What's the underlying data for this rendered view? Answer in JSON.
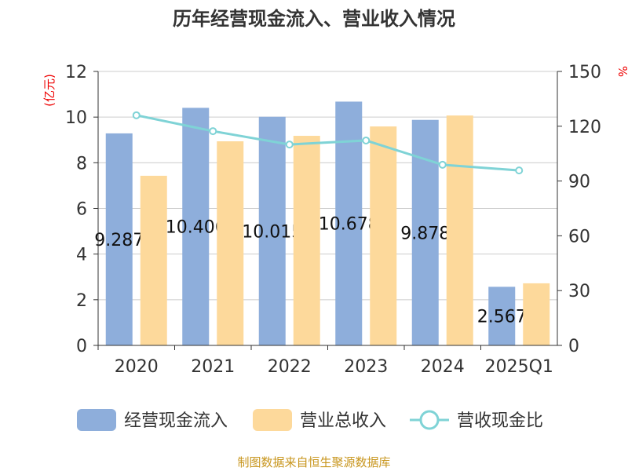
{
  "chart_data": {
    "type": "bar",
    "title": "历年经营现金流入、营业收入情况",
    "categories": [
      "2020",
      "2021",
      "2022",
      "2023",
      "2024",
      "2025Q1"
    ],
    "ylabel": "(亿元)",
    "y2label": "%",
    "ylim": [
      0,
      12
    ],
    "yticks": [
      0,
      2,
      4,
      6,
      8,
      10,
      12
    ],
    "y2lim": [
      0,
      150
    ],
    "y2ticks": [
      0,
      30,
      60,
      90,
      120,
      150
    ],
    "grid": true,
    "legend_position": "bottom",
    "series": [
      {
        "name": "经营现金流入",
        "type": "bar",
        "axis": "left",
        "color": "#8eaedb",
        "values": [
          9.287,
          10.406,
          10.015,
          10.678,
          9.878,
          2.567
        ],
        "labels": [
          "9.287",
          "10.406",
          "10.015",
          "10.678",
          "9.878",
          "2.567"
        ]
      },
      {
        "name": "营业总收入",
        "type": "bar",
        "axis": "left",
        "color": "#fdd99b",
        "values": [
          7.43,
          8.94,
          9.18,
          9.59,
          10.07,
          2.72
        ]
      },
      {
        "name": "营收现金比",
        "type": "line",
        "axis": "right",
        "color": "#7fd3d6",
        "values": [
          126,
          117.3,
          110,
          112.2,
          98.9,
          95.8
        ]
      }
    ],
    "source": "制图数据来自恒生聚源数据库"
  }
}
